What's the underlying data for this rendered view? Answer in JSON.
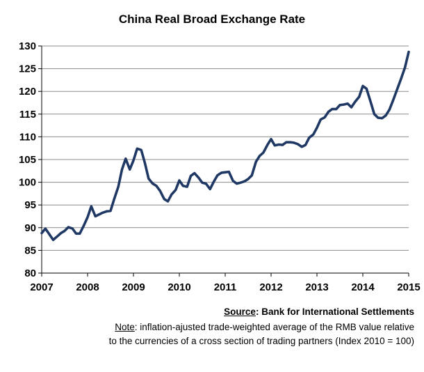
{
  "chart_data": {
    "type": "line",
    "title": "China Real Broad Exchange Rate",
    "xlabel": "",
    "ylabel": "",
    "xlim": [
      2007,
      2015
    ],
    "ylim": [
      80,
      130
    ],
    "x_ticks": [
      "2007",
      "2008",
      "2009",
      "2010",
      "2011",
      "2012",
      "2013",
      "2014",
      "2015"
    ],
    "y_ticks": [
      "80",
      "85",
      "90",
      "95",
      "100",
      "105",
      "110",
      "115",
      "120",
      "125",
      "130"
    ],
    "grid": "horizontal",
    "legend": "none",
    "series": [
      {
        "color": "#1f3864",
        "points": [
          [
            2007.0,
            88.8
          ],
          [
            2007.08,
            89.8
          ],
          [
            2007.17,
            88.5
          ],
          [
            2007.25,
            87.3
          ],
          [
            2007.33,
            88.0
          ],
          [
            2007.42,
            88.8
          ],
          [
            2007.5,
            89.3
          ],
          [
            2007.58,
            90.1
          ],
          [
            2007.67,
            89.8
          ],
          [
            2007.75,
            88.7
          ],
          [
            2007.83,
            88.7
          ],
          [
            2007.92,
            90.5
          ],
          [
            2008.0,
            92.3
          ],
          [
            2008.08,
            94.7
          ],
          [
            2008.17,
            92.5
          ],
          [
            2008.25,
            92.9
          ],
          [
            2008.33,
            93.3
          ],
          [
            2008.42,
            93.6
          ],
          [
            2008.5,
            93.7
          ],
          [
            2008.58,
            96.3
          ],
          [
            2008.67,
            99.0
          ],
          [
            2008.75,
            102.8
          ],
          [
            2008.83,
            105.2
          ],
          [
            2008.92,
            102.8
          ],
          [
            2009.0,
            104.8
          ],
          [
            2009.08,
            107.4
          ],
          [
            2009.17,
            107.1
          ],
          [
            2009.25,
            104.2
          ],
          [
            2009.33,
            100.8
          ],
          [
            2009.42,
            99.7
          ],
          [
            2009.5,
            99.2
          ],
          [
            2009.58,
            98.1
          ],
          [
            2009.67,
            96.3
          ],
          [
            2009.75,
            95.8
          ],
          [
            2009.83,
            97.3
          ],
          [
            2009.92,
            98.3
          ],
          [
            2010.0,
            100.4
          ],
          [
            2010.08,
            99.2
          ],
          [
            2010.17,
            99.0
          ],
          [
            2010.25,
            101.4
          ],
          [
            2010.33,
            102.0
          ],
          [
            2010.42,
            101.0
          ],
          [
            2010.5,
            99.9
          ],
          [
            2010.58,
            99.7
          ],
          [
            2010.67,
            98.5
          ],
          [
            2010.75,
            100.1
          ],
          [
            2010.83,
            101.5
          ],
          [
            2010.92,
            102.1
          ],
          [
            2011.0,
            102.2
          ],
          [
            2011.08,
            102.3
          ],
          [
            2011.17,
            100.3
          ],
          [
            2011.25,
            99.7
          ],
          [
            2011.33,
            99.9
          ],
          [
            2011.42,
            100.2
          ],
          [
            2011.5,
            100.7
          ],
          [
            2011.58,
            101.5
          ],
          [
            2011.67,
            104.5
          ],
          [
            2011.75,
            105.8
          ],
          [
            2011.83,
            106.5
          ],
          [
            2011.92,
            108.2
          ],
          [
            2012.0,
            109.5
          ],
          [
            2012.08,
            108.1
          ],
          [
            2012.17,
            108.3
          ],
          [
            2012.25,
            108.2
          ],
          [
            2012.33,
            108.8
          ],
          [
            2012.42,
            108.8
          ],
          [
            2012.5,
            108.7
          ],
          [
            2012.58,
            108.4
          ],
          [
            2012.67,
            107.8
          ],
          [
            2012.75,
            108.2
          ],
          [
            2012.83,
            109.8
          ],
          [
            2012.92,
            110.5
          ],
          [
            2013.0,
            112.0
          ],
          [
            2013.08,
            113.8
          ],
          [
            2013.17,
            114.3
          ],
          [
            2013.25,
            115.5
          ],
          [
            2013.33,
            116.1
          ],
          [
            2013.42,
            116.1
          ],
          [
            2013.5,
            117.0
          ],
          [
            2013.58,
            117.1
          ],
          [
            2013.67,
            117.3
          ],
          [
            2013.75,
            116.5
          ],
          [
            2013.83,
            117.7
          ],
          [
            2013.92,
            118.8
          ],
          [
            2014.0,
            121.2
          ],
          [
            2014.08,
            120.6
          ],
          [
            2014.17,
            117.7
          ],
          [
            2014.25,
            115.0
          ],
          [
            2014.33,
            114.2
          ],
          [
            2014.42,
            114.1
          ],
          [
            2014.5,
            114.7
          ],
          [
            2014.58,
            116.0
          ],
          [
            2014.67,
            118.3
          ],
          [
            2014.75,
            120.5
          ],
          [
            2014.83,
            122.7
          ],
          [
            2014.92,
            125.3
          ],
          [
            2015.0,
            128.7
          ]
        ]
      }
    ]
  },
  "source_label": "Source",
  "source_text": ": Bank for International Settlements",
  "note_label": "Note",
  "note_text": ":  inflation-ajusted trade-weighted average of the RMB value relative to the currencies of a cross section of trading partners (Index 2010 = 100)"
}
